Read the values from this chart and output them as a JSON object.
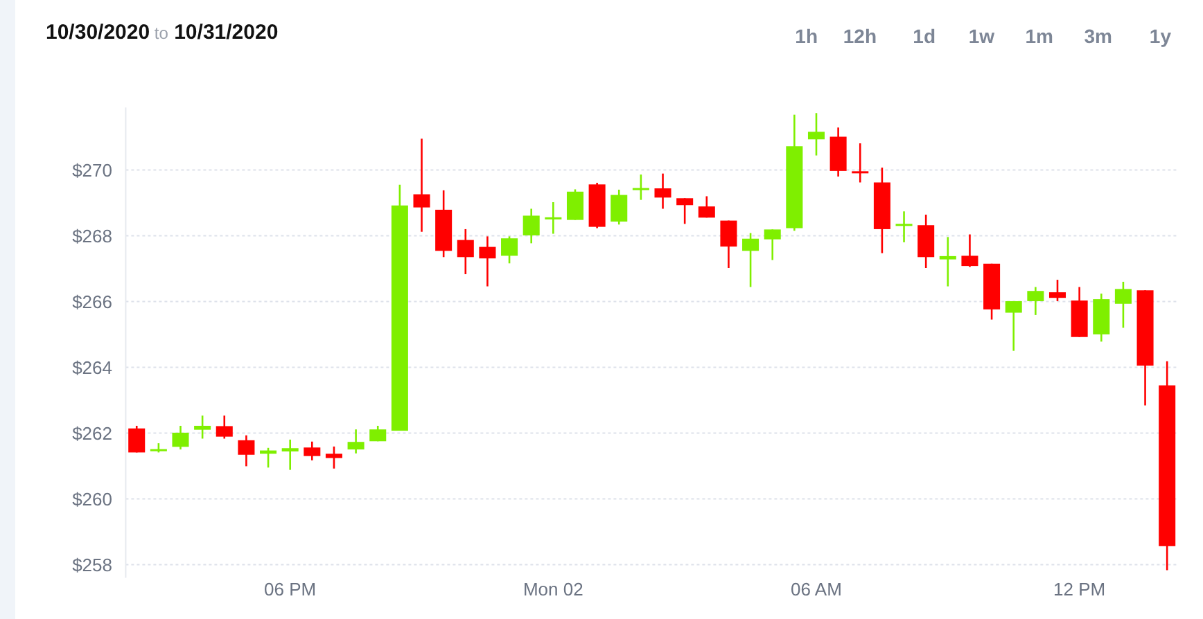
{
  "chart_data": {
    "type": "candlestick",
    "title": "10/30/2020 to 10/31/2020",
    "annotations": [
      "1h",
      "12h",
      "1d",
      "1w",
      "1m",
      "3m",
      "1y"
    ],
    "x": [
      "2020-11-01T14:30",
      "2020-11-01T15:00",
      "2020-11-01T15:30",
      "2020-11-01T16:00",
      "2020-11-01T16:30",
      "2020-11-01T17:00",
      "2020-11-01T17:30",
      "2020-11-01T18:00",
      "2020-11-01T18:30",
      "2020-11-01T19:00",
      "2020-11-01T19:30",
      "2020-11-01T20:00",
      "2020-11-01T20:30",
      "2020-11-01T21:00",
      "2020-11-01T21:30",
      "2020-11-01T22:00",
      "2020-11-01T22:30",
      "2020-11-01T23:00",
      "2020-11-01T23:30",
      "2020-11-02T00:00",
      "2020-11-02T00:30",
      "2020-11-02T01:00",
      "2020-11-02T01:30",
      "2020-11-02T02:00",
      "2020-11-02T02:30",
      "2020-11-02T03:00",
      "2020-11-02T03:30",
      "2020-11-02T04:00",
      "2020-11-02T04:30",
      "2020-11-02T05:00",
      "2020-11-02T05:30",
      "2020-11-02T06:00",
      "2020-11-02T06:30",
      "2020-11-02T07:00",
      "2020-11-02T07:30",
      "2020-11-02T08:00",
      "2020-11-02T08:30",
      "2020-11-02T09:00",
      "2020-11-02T09:30",
      "2020-11-02T10:00",
      "2020-11-02T10:30",
      "2020-11-02T11:00",
      "2020-11-02T11:30",
      "2020-11-02T12:00",
      "2020-11-02T12:30",
      "2020-11-02T13:00",
      "2020-11-02T13:30",
      "2020-11-02T14:00"
    ],
    "ohlc": [
      [
        262.14,
        262.22,
        261.41,
        261.41
      ],
      [
        261.48,
        261.69,
        261.41,
        261.51
      ],
      [
        261.58,
        262.22,
        261.5,
        262.01
      ],
      [
        262.1,
        262.53,
        261.83,
        262.22
      ],
      [
        262.21,
        262.53,
        261.83,
        261.89
      ],
      [
        261.78,
        261.93,
        260.99,
        261.34
      ],
      [
        261.37,
        261.55,
        260.95,
        261.47
      ],
      [
        261.44,
        261.8,
        260.88,
        261.54
      ],
      [
        261.56,
        261.74,
        261.17,
        261.3
      ],
      [
        261.37,
        261.59,
        260.92,
        261.24
      ],
      [
        261.5,
        262.11,
        261.38,
        261.73
      ],
      [
        261.75,
        262.22,
        261.75,
        262.11
      ],
      [
        262.07,
        269.55,
        262.07,
        268.92
      ],
      [
        269.26,
        270.95,
        268.12,
        268.86
      ],
      [
        268.79,
        269.38,
        267.35,
        267.54
      ],
      [
        267.87,
        268.2,
        266.83,
        267.35
      ],
      [
        267.66,
        267.98,
        266.46,
        267.31
      ],
      [
        267.39,
        267.98,
        267.16,
        267.92
      ],
      [
        268.01,
        268.82,
        267.77,
        268.61
      ],
      [
        268.52,
        269.02,
        268.06,
        268.56
      ],
      [
        268.48,
        269.41,
        268.48,
        269.34
      ],
      [
        269.56,
        269.61,
        268.23,
        268.27
      ],
      [
        268.43,
        269.4,
        268.34,
        269.24
      ],
      [
        269.4,
        269.86,
        269.09,
        269.45
      ],
      [
        269.44,
        269.89,
        268.82,
        269.16
      ],
      [
        269.14,
        269.14,
        268.36,
        268.93
      ],
      [
        268.89,
        269.2,
        268.55,
        268.55
      ],
      [
        268.46,
        268.46,
        267.02,
        267.67
      ],
      [
        267.54,
        268.08,
        266.44,
        267.91
      ],
      [
        267.89,
        268.19,
        267.26,
        268.19
      ],
      [
        268.23,
        271.68,
        268.15,
        270.72
      ],
      [
        270.93,
        271.73,
        270.44,
        271.16
      ],
      [
        271.01,
        271.29,
        269.8,
        269.97
      ],
      [
        269.96,
        270.81,
        269.62,
        269.9
      ],
      [
        269.62,
        270.07,
        267.47,
        268.2
      ],
      [
        268.3,
        268.74,
        267.8,
        268.36
      ],
      [
        268.32,
        268.64,
        267.02,
        267.35
      ],
      [
        267.28,
        267.96,
        266.46,
        267.38
      ],
      [
        267.39,
        268.04,
        267.05,
        267.08
      ],
      [
        267.15,
        267.15,
        265.45,
        265.76
      ],
      [
        265.66,
        266.01,
        264.5,
        266.01
      ],
      [
        266.01,
        266.44,
        265.59,
        266.32
      ],
      [
        266.28,
        266.66,
        266.01,
        266.11
      ],
      [
        266.03,
        266.44,
        264.92,
        264.92
      ],
      [
        265,
        266.24,
        264.78,
        266.07
      ],
      [
        265.93,
        266.6,
        265.2,
        266.38
      ],
      [
        266.34,
        266.34,
        262.84,
        264.05
      ],
      [
        263.45,
        264.18,
        257.83,
        258.56
      ]
    ],
    "xlim": [
      "2020-11-01T14:15",
      "2020-11-02T14:15"
    ],
    "xticks": [
      {
        "value": "2020-11-01T18:00",
        "label": "06 PM"
      },
      {
        "value": "2020-11-02T00:00",
        "label": "Mon 02"
      },
      {
        "value": "2020-11-02T06:00",
        "label": "06 AM"
      },
      {
        "value": "2020-11-02T12:00",
        "label": "12 PM"
      }
    ],
    "ylim": [
      257.6,
      271.9
    ],
    "yticks": [
      {
        "value": 258,
        "label": "$258"
      },
      {
        "value": 260,
        "label": "$260"
      },
      {
        "value": 262,
        "label": "$262"
      },
      {
        "value": 264,
        "label": "$264"
      },
      {
        "value": 266,
        "label": "$266"
      },
      {
        "value": 268,
        "label": "$268"
      },
      {
        "value": 270,
        "label": "$270"
      }
    ],
    "grid": "y"
  }
}
